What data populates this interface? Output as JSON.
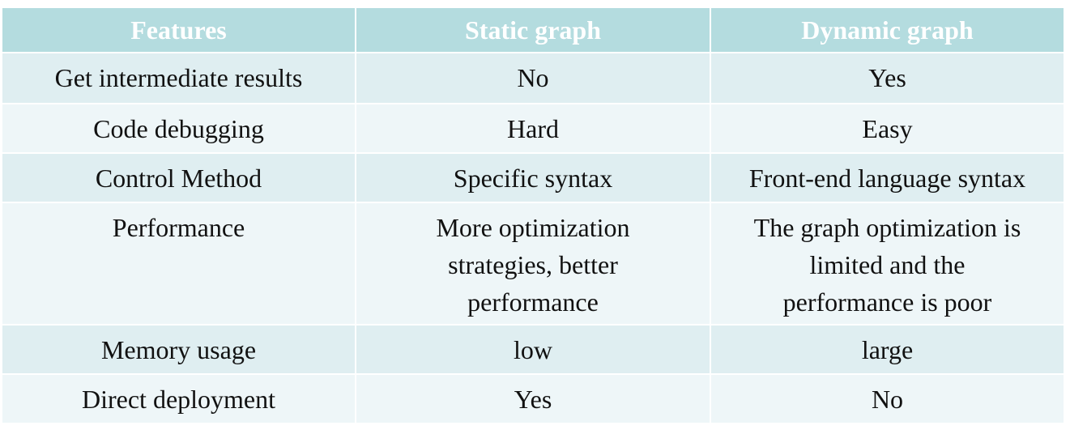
{
  "table": {
    "header": [
      "Features",
      "Static graph",
      "Dynamic graph"
    ],
    "rows": [
      [
        "Get intermediate results",
        "No",
        "Yes"
      ],
      [
        "Code debugging",
        "Hard",
        "Easy"
      ],
      [
        "Control Method",
        "Specific syntax",
        "Front-end language syntax"
      ],
      [
        "Performance",
        [
          "More optimization",
          "strategies, better",
          "performance"
        ],
        [
          "The graph optimization is",
          "limited and the",
          "performance is poor"
        ]
      ],
      [
        "Memory usage",
        "low",
        "large"
      ],
      [
        "Direct deployment",
        "Yes",
        "No"
      ]
    ]
  }
}
